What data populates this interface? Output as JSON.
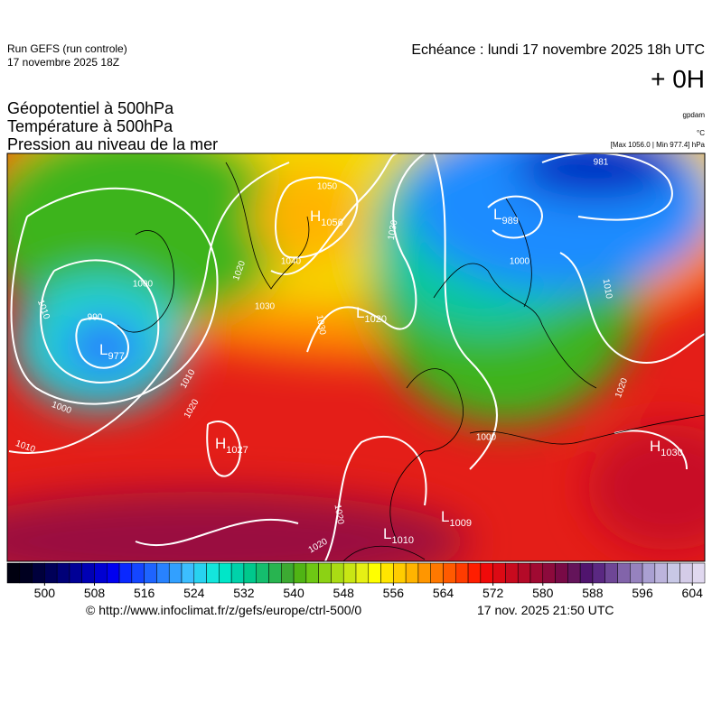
{
  "header": {
    "run": "Run GEFS (run controle)",
    "run_date": "17 novembre 2025 18Z",
    "valid": "Echéance : lundi 17 novembre 2025 18h UTC",
    "lead": "+ 0H",
    "fields": [
      "Géopotentiel à 500hPa",
      "Température à 500hPa",
      "Pression au niveau de la mer"
    ]
  },
  "legend": {
    "units_geopotential": "gpdam",
    "units_temperature": "°C",
    "extremes": "[Max 1056.0 | Min 977.4] hPa"
  },
  "map": {
    "centers": [
      {
        "kind": "H",
        "value": "1056"
      },
      {
        "kind": "L",
        "value": "989"
      },
      {
        "kind": "L",
        "value": "1020"
      },
      {
        "kind": "L",
        "value": "977"
      },
      {
        "kind": "H",
        "value": "1027"
      },
      {
        "kind": "H",
        "value": "1030"
      },
      {
        "kind": "L",
        "value": "1009"
      },
      {
        "kind": "L",
        "value": "1010"
      }
    ],
    "isobar_labels": [
      "1050",
      "1040",
      "1030",
      "1030",
      "1030",
      "1000",
      "990",
      "1010",
      "1010",
      "1020",
      "1000",
      "1010",
      "1020",
      "1020",
      "1000",
      "1010",
      "1020",
      "981",
      "1000",
      "1020"
    ]
  },
  "colorbar": {
    "range": [
      494,
      606
    ],
    "ticks": [
      500,
      508,
      516,
      524,
      532,
      540,
      548,
      556,
      564,
      572,
      580,
      588,
      596,
      604
    ],
    "colors": [
      "#000010",
      "#000020",
      "#00003c",
      "#000058",
      "#000078",
      "#000096",
      "#0000b4",
      "#0000d2",
      "#0000f0",
      "#0a28ff",
      "#1446ff",
      "#1e64ff",
      "#2882ff",
      "#32a0ff",
      "#3cbeff",
      "#28d2f0",
      "#14e6dc",
      "#00e6c8",
      "#00d2aa",
      "#00c88c",
      "#14be6e",
      "#28b450",
      "#3caa32",
      "#50b414",
      "#6ec814",
      "#8cd214",
      "#aadc14",
      "#c8e614",
      "#e6f014",
      "#ffff00",
      "#ffe600",
      "#ffcc00",
      "#ffb400",
      "#ff9600",
      "#ff7800",
      "#ff5a00",
      "#ff3c00",
      "#ff1e00",
      "#f00a0a",
      "#dc0a14",
      "#c80a1e",
      "#b40a28",
      "#a00a32",
      "#8c0a3c",
      "#780a46",
      "#64145a",
      "#50146e",
      "#5a2882",
      "#6e4696",
      "#8264aa",
      "#9682be",
      "#aaa0d2",
      "#bcb4dc",
      "#c8c8e6",
      "#d4cce8",
      "#e0d8ef"
    ]
  },
  "footer": {
    "url": "© http://www.infoclimat.fr/z/gefs/europe/ctrl-500/0",
    "generated": "17 nov. 2025 21:50 UTC"
  }
}
